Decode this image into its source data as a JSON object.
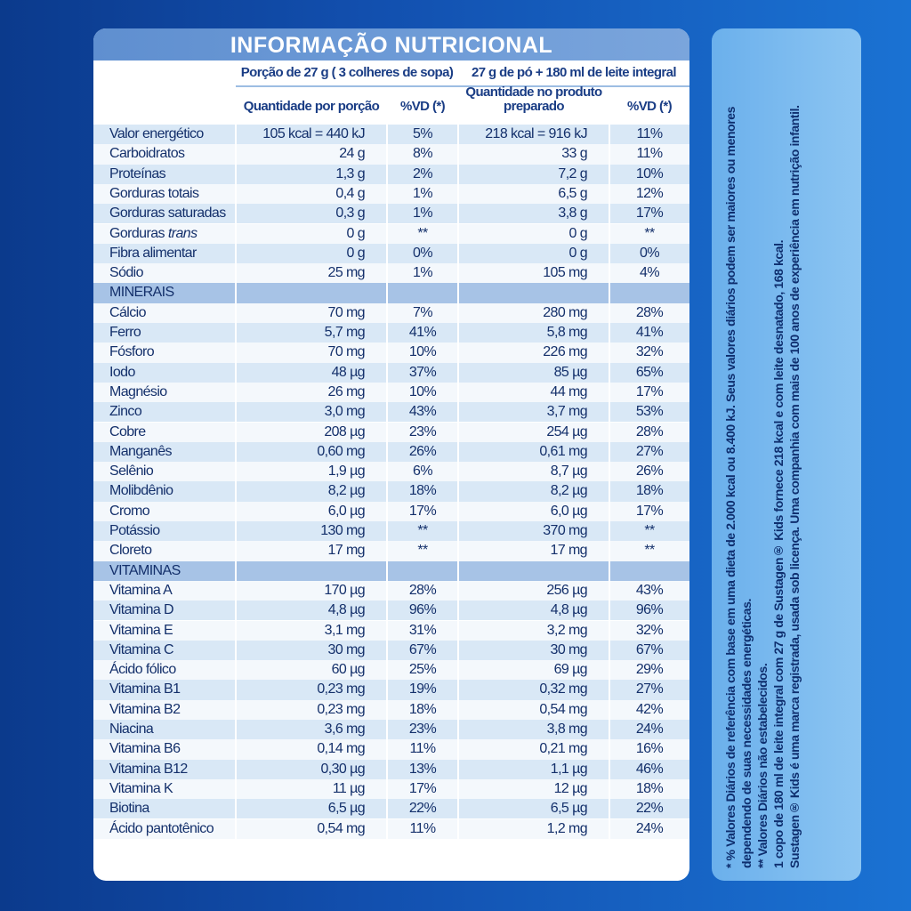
{
  "title": "INFORMAÇÃO NUTRICIONAL",
  "header": {
    "group1": "Porção de 27 g ( 3 colheres de sopa)",
    "group2": "27 g de pó + 180 ml de leite integral",
    "sub": [
      "Quantidade por porção",
      "%VD (*)",
      "Quantidade no produto preparado",
      "%VD (*)"
    ]
  },
  "rows": [
    {
      "name": "Valor energético",
      "values": [
        "105 kcal = 440 kJ",
        "5%",
        "218 kcal = 916 kJ",
        "11%"
      ]
    },
    {
      "name": "Carboidratos",
      "values": [
        "24 g",
        "8%",
        "33 g",
        "11%"
      ]
    },
    {
      "name": "Proteínas",
      "values": [
        "1,3 g",
        "2%",
        "7,2 g",
        "10%"
      ]
    },
    {
      "name": "Gorduras totais",
      "values": [
        "0,4 g",
        "1%",
        "6,5 g",
        "12%"
      ]
    },
    {
      "name": "Gorduras saturadas",
      "values": [
        "0,3 g",
        "1%",
        "3,8 g",
        "17%"
      ]
    },
    {
      "name": "Gorduras",
      "name_italic": "trans",
      "values": [
        "0 g",
        "**",
        "0 g",
        "**"
      ]
    },
    {
      "name": "Fibra alimentar",
      "values": [
        "0 g",
        "0%",
        "0 g",
        "0%"
      ]
    },
    {
      "name": "Sódio",
      "values": [
        "25 mg",
        "1%",
        "105 mg",
        "4%"
      ]
    },
    {
      "section": "MINERAIS"
    },
    {
      "name": "Cálcio",
      "values": [
        "70 mg",
        "7%",
        "280 mg",
        "28%"
      ]
    },
    {
      "name": "Ferro",
      "values": [
        "5,7 mg",
        "41%",
        "5,8 mg",
        "41%"
      ]
    },
    {
      "name": "Fósforo",
      "values": [
        "70 mg",
        "10%",
        "226 mg",
        "32%"
      ]
    },
    {
      "name": "Iodo",
      "values": [
        "48 µg",
        "37%",
        "85 µg",
        "65%"
      ]
    },
    {
      "name": "Magnésio",
      "values": [
        "26 mg",
        "10%",
        "44 mg",
        "17%"
      ]
    },
    {
      "name": "Zinco",
      "values": [
        "3,0 mg",
        "43%",
        "3,7 mg",
        "53%"
      ]
    },
    {
      "name": "Cobre",
      "values": [
        "208 µg",
        "23%",
        "254 µg",
        "28%"
      ]
    },
    {
      "name": "Manganês",
      "values": [
        "0,60 mg",
        "26%",
        "0,61 mg",
        "27%"
      ]
    },
    {
      "name": "Selênio",
      "values": [
        "1,9 µg",
        "6%",
        "8,7 µg",
        "26%"
      ]
    },
    {
      "name": "Molibdênio",
      "values": [
        "8,2 µg",
        "18%",
        "8,2 µg",
        "18%"
      ]
    },
    {
      "name": "Cromo",
      "values": [
        "6,0 µg",
        "17%",
        "6,0 µg",
        "17%"
      ]
    },
    {
      "name": "Potássio",
      "values": [
        "130 mg",
        "**",
        "370 mg",
        "**"
      ]
    },
    {
      "name": "Cloreto",
      "values": [
        "17 mg",
        "**",
        "17 mg",
        "**"
      ]
    },
    {
      "section": "VITAMINAS"
    },
    {
      "name": "Vitamina A",
      "values": [
        "170 µg",
        "28%",
        "256 µg",
        "43%"
      ]
    },
    {
      "name": "Vitamina D",
      "values": [
        "4,8 µg",
        "96%",
        "4,8 µg",
        "96%"
      ]
    },
    {
      "name": "Vitamina E",
      "values": [
        "3,1 mg",
        "31%",
        "3,2 mg",
        "32%"
      ]
    },
    {
      "name": "Vitamina C",
      "values": [
        "30 mg",
        "67%",
        "30 mg",
        "67%"
      ]
    },
    {
      "name": "Ácido fólico",
      "values": [
        "60 µg",
        "25%",
        "69 µg",
        "29%"
      ]
    },
    {
      "name": "Vitamina B1",
      "values": [
        "0,23 mg",
        "19%",
        "0,32 mg",
        "27%"
      ]
    },
    {
      "name": "Vitamina B2",
      "values": [
        "0,23 mg",
        "18%",
        "0,54 mg",
        "42%"
      ]
    },
    {
      "name": "Niacina",
      "values": [
        "3,6 mg",
        "23%",
        "3,8 mg",
        "24%"
      ]
    },
    {
      "name": "Vitamina B6",
      "values": [
        "0,14 mg",
        "11%",
        "0,21 mg",
        "16%"
      ]
    },
    {
      "name": "Vitamina B12",
      "values": [
        "0,30 µg",
        "13%",
        "1,1 µg",
        "46%"
      ]
    },
    {
      "name": "Vitamina K",
      "values": [
        "11 µg",
        "17%",
        "12 µg",
        "18%"
      ]
    },
    {
      "name": "Biotina",
      "values": [
        "6,5 µg",
        "22%",
        "6,5 µg",
        "22%"
      ]
    },
    {
      "name": "Ácido pantotênico",
      "values": [
        "0,54 mg",
        "11%",
        "1,2 mg",
        "24%"
      ]
    }
  ],
  "footnotes": [
    "* % Valores Diários de referência com base em uma dieta de 2.000 kcal ou 8.400 kJ. Seus valores diários podem ser maiores ou menores dependendo de suas necessidades energéticas.",
    "** Valores Diários não estabelecidos.",
    "1 copo de 180 ml de leite integral com 27 g de Sustagen® Kids fornece 218 kcal e com leite desnatado, 168 kcal.",
    "Sustagen® Kids é uma marca registrada, usada sob licença. Uma companhia com mais de 100 anos de experiência em nutrição infantil."
  ]
}
